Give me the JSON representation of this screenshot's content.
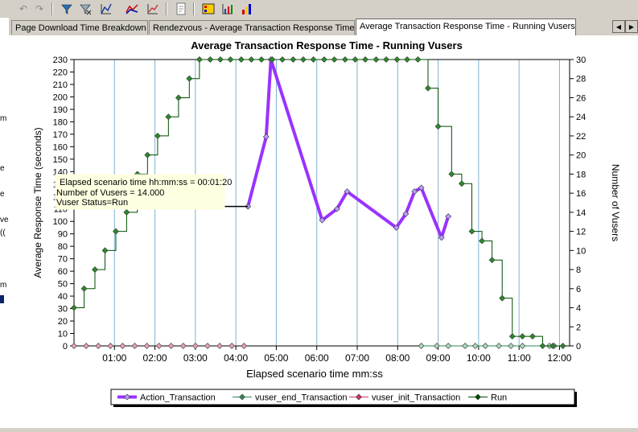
{
  "toolbar": {
    "icons": [
      "undo-icon",
      "redo-icon",
      "filter-icon",
      "clear-filter-icon",
      "add-graph-icon",
      "merge-graphs-icon",
      "correlate-icon",
      "report-icon",
      "legend-icon",
      "graph-properties-icon",
      "color-icon"
    ]
  },
  "left_strip": [
    "m",
    "e",
    "e",
    "ve",
    "((",
    "m"
  ],
  "tabs": [
    {
      "label": "Page Download Time Breakdown",
      "active": false
    },
    {
      "label": "Rendezvous - Average Transaction Response Time",
      "active": false
    },
    {
      "label": "Average Transaction Response Time - Running Vusers",
      "active": true
    }
  ],
  "chart_data": {
    "type": "line",
    "title": "Average Transaction Response Time - Running Vusers",
    "xlabel": "Elapsed scenario time mm:ss",
    "ylabel": "Average Response Time (seconds)",
    "y2label": "Number of Vusers",
    "x_unit": "seconds",
    "xlim": [
      0,
      735
    ],
    "ylim": [
      0,
      230
    ],
    "y2lim": [
      0,
      30
    ],
    "xticks": [
      60,
      120,
      180,
      240,
      300,
      360,
      420,
      480,
      540,
      600,
      660,
      720
    ],
    "xtick_labels": [
      "01:00",
      "02:00",
      "03:00",
      "04:00",
      "05:00",
      "06:00",
      "07:00",
      "08:00",
      "09:00",
      "10:00",
      "11:00",
      "12:00"
    ],
    "yticks": [
      0,
      10,
      20,
      30,
      40,
      50,
      60,
      70,
      80,
      90,
      100,
      110,
      120,
      130,
      140,
      150,
      160,
      170,
      180,
      190,
      200,
      210,
      220,
      230
    ],
    "y2ticks": [
      0,
      2,
      4,
      6,
      8,
      10,
      12,
      14,
      16,
      18,
      20,
      22,
      24,
      26,
      28,
      30
    ],
    "grid": "vertical",
    "series": [
      {
        "name": "Action_Transaction",
        "color": "#9933ff",
        "axis": "left",
        "step": false,
        "x": [
          258,
          285,
          292,
          368,
          390,
          405,
          478,
          492,
          505,
          515,
          545,
          555
        ],
        "y": [
          112,
          168,
          230,
          101,
          110,
          124,
          95,
          106,
          124,
          127,
          87,
          104
        ]
      },
      {
        "name": "vuser_end_Transaction",
        "color": "#2e8b57",
        "axis": "left",
        "step": false,
        "x": [
          515,
          538,
          555,
          580,
          595,
          610,
          630,
          648,
          665,
          705,
          712
        ],
        "y": [
          0,
          0,
          0,
          0,
          0,
          0,
          0,
          0,
          0,
          0,
          0
        ]
      },
      {
        "name": "vuser_init_Transaction",
        "color": "#cc3366",
        "axis": "left",
        "step": false,
        "x": [
          0,
          18,
          36,
          54,
          72,
          90,
          108,
          126,
          144,
          162,
          180,
          198,
          216,
          234,
          252
        ],
        "y": [
          0,
          0,
          0,
          0,
          0,
          0,
          0,
          0,
          0,
          0,
          0,
          0,
          0,
          0,
          0
        ]
      },
      {
        "name": "Run",
        "color": "#004d00",
        "axis": "right",
        "step": true,
        "x": [
          0,
          15,
          31,
          46,
          62,
          78,
          94,
          109,
          124,
          140,
          155,
          171,
          186,
          202,
          217,
          232,
          248,
          263,
          278,
          294,
          309,
          325,
          340,
          355,
          371,
          386,
          402,
          417,
          432,
          448,
          463,
          479,
          494,
          510,
          525,
          540,
          560,
          575,
          590,
          605,
          620,
          635,
          650,
          665,
          680,
          695,
          710,
          725
        ],
        "y": [
          4,
          6,
          8,
          10,
          12,
          14,
          18,
          20,
          22,
          24,
          26,
          28,
          30,
          30,
          30,
          30,
          30,
          30,
          30,
          30,
          30,
          30,
          30,
          30,
          30,
          30,
          30,
          30,
          30,
          30,
          30,
          30,
          30,
          30,
          27,
          23,
          18,
          17,
          12,
          11,
          9,
          5,
          1,
          1,
          1,
          0,
          0,
          0
        ]
      }
    ],
    "_note": ""
  },
  "legend": {
    "items": [
      {
        "label": "Action_Transaction",
        "color": "#9933ff",
        "marker": "line"
      },
      {
        "label": "vuser_end_Transaction",
        "color": "#2e8b57",
        "marker": "diamond"
      },
      {
        "label": "vuser_init_Transaction",
        "color": "#cc3366",
        "marker": "diamond"
      },
      {
        "label": "Run",
        "color": "#004d00",
        "marker": "diamond"
      }
    ]
  },
  "tooltip": {
    "lines": [
      "Elapsed scenario time hh:mm:ss = 00:01:20",
      "Number of Vusers = 14.000",
      "Vuser Status=Run"
    ]
  }
}
